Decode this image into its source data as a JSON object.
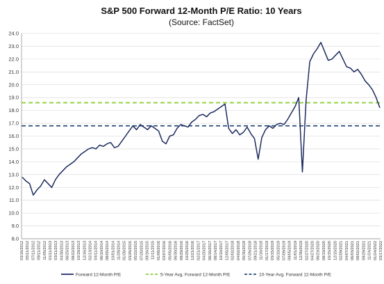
{
  "chart_data": {
    "type": "line",
    "title": "S&P 500 Forward 12-Month P/E Ratio: 10 Years",
    "subtitle": "(Source: FactSet)",
    "xlabel": "",
    "ylabel": "",
    "ylim": [
      8.0,
      24.0
    ],
    "ytick_step": 1.0,
    "grid": "horizontal",
    "legend_position": "bottom",
    "colors": {
      "pe_line": "#1b2a5e",
      "avg5": "#8ccf3a",
      "avg10": "#2a4a7a"
    },
    "x_tick_labels": [
      "03/16/2012",
      "05/11/2012",
      "07/11/2012",
      "09/11/2012",
      "11/05/2012",
      "01/11/2013",
      "03/11/2013",
      "04/30/2013",
      "06/25/2013",
      "08/22/2013",
      "10/18/2013",
      "12/16/2013",
      "02/13/2014",
      "04/11/2014",
      "06/10/2014",
      "08/05/2014",
      "10/01/2014",
      "11/28/2014",
      "01/26/2015",
      "03/26/2015",
      "05/22/2015",
      "07/20/2015",
      "09/16/2015",
      "11/11/2015",
      "01/08/2016",
      "03/07/2016",
      "05/05/2016",
      "06/30/2016",
      "08/29/2016",
      "10/25/2016",
      "12/21/2016",
      "02/21/2017",
      "04/20/2017",
      "06/16/2017",
      "08/14/2017",
      "10/10/2017",
      "12/05/2017",
      "02/02/2018",
      "04/02/2018",
      "05/30/2018",
      "07/26/2018",
      "09/21/2018",
      "11/16/2018",
      "01/17/2019",
      "03/15/2019",
      "05/10/2019",
      "07/09/2019",
      "09/05/2019",
      "11/01/2019",
      "12/30/2019",
      "02/27/2020",
      "04/27/2020",
      "06/23/2020",
      "08/19/2020",
      "10/15/2020",
      "12/10/2020",
      "02/09/2021",
      "04/07/2021",
      "06/03/2021",
      "08/02/2021",
      "09/29/2021",
      "11/24/2021",
      "01/24/2022",
      "03/17/2022"
    ],
    "series": [
      {
        "name": "Forward 12-Month P/E",
        "style": "solid",
        "values": [
          12.8,
          12.5,
          12.3,
          11.4,
          11.8,
          12.1,
          12.6,
          12.3,
          12.0,
          12.6,
          13.0,
          13.3,
          13.6,
          13.8,
          14.0,
          14.3,
          14.6,
          14.8,
          15.0,
          15.1,
          15.0,
          15.3,
          15.2,
          15.4,
          15.5,
          15.1,
          15.2,
          15.6,
          16.0,
          16.4,
          16.8,
          16.5,
          16.9,
          16.7,
          16.5,
          16.8,
          16.6,
          16.4,
          15.6,
          15.4,
          16.0,
          16.1,
          16.6,
          16.9,
          16.8,
          16.7,
          17.1,
          17.3,
          17.6,
          17.7,
          17.5,
          17.8,
          17.9,
          18.1,
          18.3,
          18.5,
          16.6,
          16.2,
          16.5,
          16.1,
          16.3,
          16.7,
          16.2,
          15.8,
          14.2,
          15.9,
          16.5,
          16.8,
          16.6,
          16.9,
          17.0,
          16.9,
          17.3,
          17.8,
          18.3,
          19.0,
          13.2,
          18.8,
          21.8,
          22.4,
          22.8,
          23.3,
          22.6,
          21.9,
          22.0,
          22.3,
          22.6,
          22.0,
          21.4,
          21.3,
          21.0,
          21.2,
          20.8,
          20.3,
          20.0,
          19.6,
          19.0,
          18.2
        ]
      },
      {
        "name": "5-Year Avg. Forward 12-Month P/E",
        "style": "dashed",
        "value": 18.6
      },
      {
        "name": "10-Year Avg. Forward 12-Month P/E",
        "style": "dashed",
        "value": 16.8
      }
    ]
  }
}
